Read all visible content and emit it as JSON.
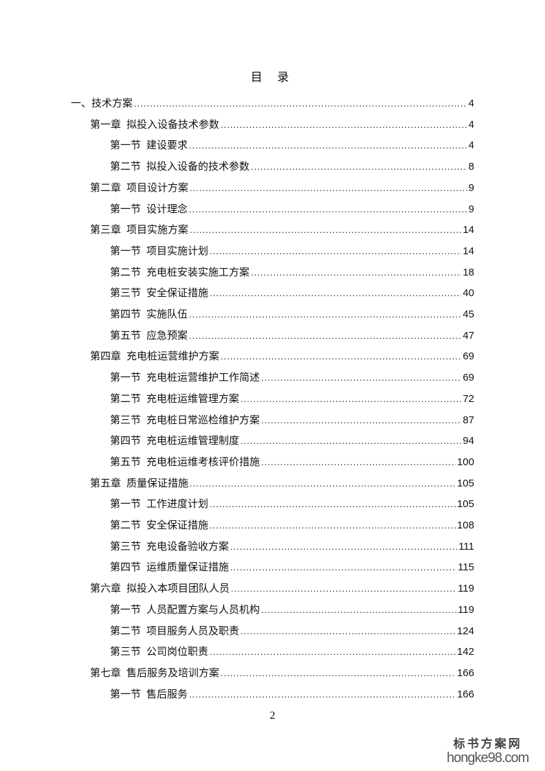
{
  "title": "目 录",
  "entries": [
    {
      "level": 0,
      "num": "",
      "label": "一、技术方案",
      "page": "4"
    },
    {
      "level": 1,
      "num": "第一章",
      "label": "拟投入设备技术参数",
      "page": "4"
    },
    {
      "level": 2,
      "num": "第一节",
      "label": "建设要求",
      "page": "4"
    },
    {
      "level": 2,
      "num": "第二节",
      "label": "拟投入设备的技术参数",
      "page": "8"
    },
    {
      "level": 1,
      "num": "第二章",
      "label": "项目设计方案",
      "page": "9"
    },
    {
      "level": 2,
      "num": "第一节",
      "label": "设计理念",
      "page": "9"
    },
    {
      "level": 1,
      "num": "第三章",
      "label": "项目实施方案",
      "page": "14"
    },
    {
      "level": 2,
      "num": "第一节",
      "label": "项目实施计划",
      "page": "14"
    },
    {
      "level": 2,
      "num": "第二节",
      "label": "充电桩安装实施工方案",
      "page": "18"
    },
    {
      "level": 2,
      "num": "第三节",
      "label": "安全保证措施",
      "page": "40"
    },
    {
      "level": 2,
      "num": "第四节",
      "label": "实施队伍",
      "page": "45"
    },
    {
      "level": 2,
      "num": "第五节",
      "label": "应急预案",
      "page": "47"
    },
    {
      "level": 1,
      "num": "第四章",
      "label": "充电桩运营维护方案",
      "page": "69"
    },
    {
      "level": 2,
      "num": "第一节",
      "label": "充电桩运营维护工作简述",
      "page": "69"
    },
    {
      "level": 2,
      "num": "第二节",
      "label": "充电桩运维管理方案",
      "page": "72"
    },
    {
      "level": 2,
      "num": "第三节",
      "label": "充电桩日常巡检维护方案",
      "page": "87"
    },
    {
      "level": 2,
      "num": "第四节",
      "label": "充电桩运维管理制度",
      "page": "94"
    },
    {
      "level": 2,
      "num": "第五节",
      "label": "充电桩运维考核评价措施",
      "page": "100"
    },
    {
      "level": 1,
      "num": "第五章",
      "label": "质量保证措施",
      "page": "105"
    },
    {
      "level": 2,
      "num": "第一节",
      "label": "工作进度计划",
      "page": "105"
    },
    {
      "level": 2,
      "num": "第二节",
      "label": "安全保证措施",
      "page": "108"
    },
    {
      "level": 2,
      "num": "第三节",
      "label": "充电设备验收方案",
      "page": "111"
    },
    {
      "level": 2,
      "num": "第四节",
      "label": "运维质量保证措施",
      "page": "115"
    },
    {
      "level": 1,
      "num": "第六章",
      "label": "拟投入本项目团队人员",
      "page": "119"
    },
    {
      "level": 2,
      "num": "第一节",
      "label": "人员配置方案与人员机构",
      "page": "119"
    },
    {
      "level": 2,
      "num": "第二节",
      "label": "项目服务人员及职责",
      "page": "124"
    },
    {
      "level": 2,
      "num": "第三节",
      "label": "公司岗位职责",
      "page": "142"
    },
    {
      "level": 1,
      "num": "第七章",
      "label": "售后服务及培训方案",
      "page": "166"
    },
    {
      "level": 2,
      "num": "第一节",
      "label": "售后服务",
      "page": "166"
    }
  ],
  "page_number": "2",
  "watermark": {
    "cn": "标书方案网",
    "en": "hongke98.com"
  }
}
